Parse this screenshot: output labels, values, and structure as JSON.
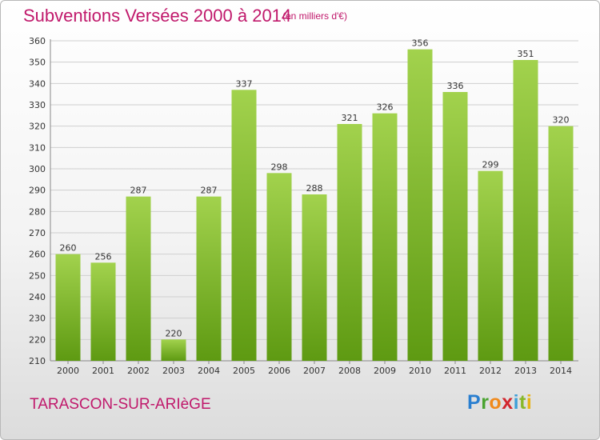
{
  "header": {
    "title": "Subventions Versées 2000 à 2014",
    "subtitle": "(en milliers d'€)"
  },
  "footer": {
    "commune": "TARASCON-SUR-ARIèGE",
    "logo_letters": [
      "P",
      "r",
      "o",
      "x",
      "i",
      "t",
      "i"
    ]
  },
  "colors": {
    "title": "#c0186b",
    "bar_top": "#a2d24d",
    "bar_bottom": "#5e9a12",
    "grid": "#cfcfcf"
  },
  "chart_data": {
    "type": "bar",
    "title": "Subventions Versées 2000 à 2014",
    "subtitle": "(en milliers d'€)",
    "xlabel": "",
    "ylabel": "",
    "categories": [
      "2000",
      "2001",
      "2002",
      "2003",
      "2004",
      "2005",
      "2006",
      "2007",
      "2008",
      "2009",
      "2010",
      "2011",
      "2012",
      "2013",
      "2014"
    ],
    "values": [
      260,
      256,
      287,
      220,
      287,
      337,
      298,
      288,
      321,
      326,
      356,
      336,
      299,
      351,
      320
    ],
    "ylim": [
      210,
      360
    ],
    "yticks": [
      210,
      220,
      230,
      240,
      250,
      260,
      270,
      280,
      290,
      300,
      310,
      320,
      330,
      340,
      350,
      360
    ],
    "grid": true,
    "legend": "none",
    "data_labels": true
  }
}
